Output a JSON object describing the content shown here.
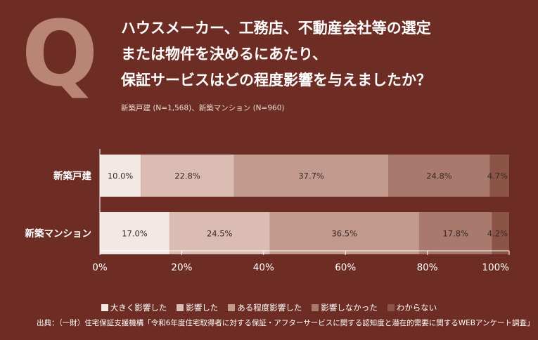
{
  "q_label": "Q",
  "title_lines": [
    "ハウスメーカー、工務店、不動産会社等の選定",
    "または物件を決めるにあたり、",
    "保証サービスはどの程度影響を与えましたか？"
  ],
  "subtitle": "新築戸建 (N=1,568)、新築マンション (N=960)",
  "source": "出典：（一財）住宅保証支援機構「令和6年度住宅取得者に対する保証・アフターサービスに関する認知度と潜在的需要に関するWEBアンケート調査」",
  "chart_data": {
    "type": "bar",
    "orientation": "horizontal-stacked-100",
    "categories": [
      "新築戸建",
      "新築マンション"
    ],
    "series": [
      {
        "name": "大きく影響した",
        "values": [
          10.0,
          17.0
        ],
        "color": "#f3e9e4",
        "label_color": "#3a2a26"
      },
      {
        "name": "影響した",
        "values": [
          22.8,
          24.5
        ],
        "color": "#dbbcb2",
        "label_color": "#3a2a26"
      },
      {
        "name": "ある程度影響した",
        "values": [
          37.7,
          36.5
        ],
        "color": "#c19a8d",
        "label_color": "#3a2a26"
      },
      {
        "name": "影響しなかった",
        "values": [
          24.8,
          17.8
        ],
        "color": "#a8796c",
        "label_color": "#3a2a26"
      },
      {
        "name": "わからない",
        "values": [
          4.7,
          4.2
        ],
        "color": "#8b5447",
        "label_color": "#3a2a26"
      }
    ],
    "data_labels": [
      [
        "10.0%",
        "22.8%",
        "37.7%",
        "24.8%",
        "4.7%"
      ],
      [
        "17.0%",
        "24.5%",
        "36.5%",
        "17.8%",
        "4.2%"
      ]
    ],
    "x_ticks": [
      "0%",
      "20%",
      "40%",
      "60%",
      "80%",
      "100%"
    ],
    "x_tick_values": [
      0,
      20,
      40,
      60,
      80,
      100
    ],
    "xlim": [
      0,
      100
    ],
    "grid": false,
    "legend_position": "bottom"
  }
}
